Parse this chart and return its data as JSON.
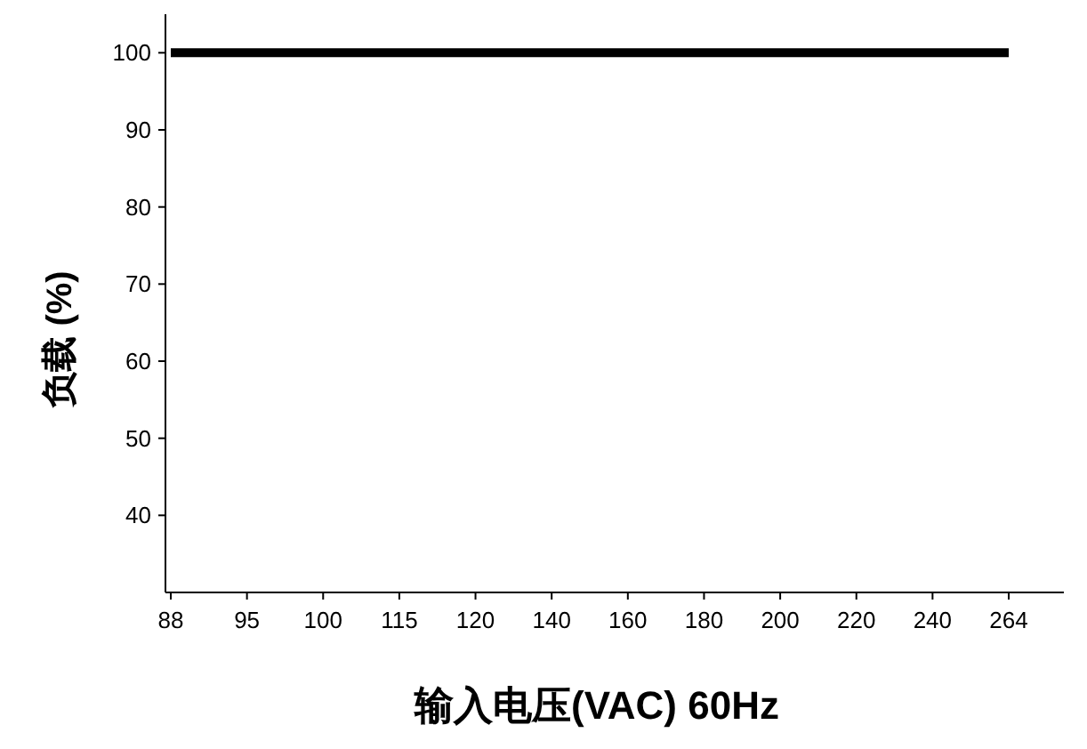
{
  "chart_data": {
    "type": "line",
    "xlabel": "输入电压(VAC) 60Hz",
    "ylabel": "负载 (%)",
    "categories": [
      "88",
      "95",
      "100",
      "115",
      "120",
      "140",
      "160",
      "180",
      "200",
      "220",
      "240",
      "264"
    ],
    "series": [
      {
        "color": "#000000",
        "values": [
          100,
          100,
          100,
          100,
          100,
          100,
          100,
          100,
          100,
          100,
          100,
          100
        ]
      }
    ],
    "ylim": [
      30,
      105
    ],
    "yticks": [
      40,
      50,
      60,
      70,
      80,
      90,
      100
    ],
    "grid": false,
    "marker": "none",
    "line_style": "solid"
  }
}
